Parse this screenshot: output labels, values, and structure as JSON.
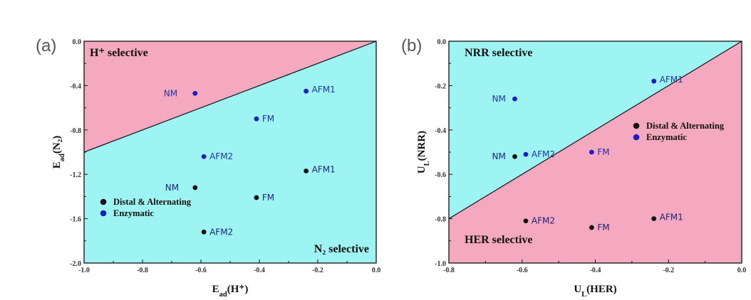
{
  "chart_data": [
    {
      "panel_label": "(a)",
      "type": "scatter",
      "xlabel": "E_ad(H⁺)",
      "ylabel": "E_ad(N₂)",
      "xlim": [
        -1.0,
        0.0
      ],
      "ylim": [
        -2.0,
        0.0
      ],
      "xticks": [
        -1.0,
        -0.8,
        -0.6,
        -0.4,
        -0.2,
        0.0
      ],
      "xtick_labels": [
        "-1.0",
        "-0.8",
        "-0.6",
        "-0.4",
        "-0.2",
        "0.0"
      ],
      "yticks": [
        0.0,
        -0.4,
        -0.8,
        -1.2,
        -1.6,
        -2.0
      ],
      "ytick_labels": [
        "0.0",
        "-0.4",
        "-0.8",
        "-1.2",
        "-1.6",
        "-2.0"
      ],
      "divider": {
        "from": [
          -1.0,
          -1.0
        ],
        "to": [
          0.0,
          0.0
        ]
      },
      "upper_region": {
        "label": "H⁺ selective",
        "color": "#f4a9c0"
      },
      "lower_region": {
        "label": "N₂ selective",
        "color": "#9ef4f2"
      },
      "legend": [
        "Distal & Alternating",
        "Enzymatic"
      ],
      "series": [
        {
          "name": "Distal & Alternating",
          "color": "#111111",
          "points": [
            {
              "x": -0.62,
              "y": -1.32,
              "label": "NM"
            },
            {
              "x": -0.41,
              "y": -1.41,
              "label": "FM"
            },
            {
              "x": -0.24,
              "y": -1.17,
              "label": "AFM1"
            },
            {
              "x": -0.59,
              "y": -1.72,
              "label": "AFM2"
            }
          ]
        },
        {
          "name": "Enzymatic",
          "color": "#1c1cc9",
          "points": [
            {
              "x": -0.62,
              "y": -0.47,
              "label": "NM"
            },
            {
              "x": -0.41,
              "y": -0.7,
              "label": "FM"
            },
            {
              "x": -0.24,
              "y": -0.45,
              "label": "AFM1"
            },
            {
              "x": -0.59,
              "y": -1.04,
              "label": "AFM2"
            }
          ]
        }
      ]
    },
    {
      "panel_label": "(b)",
      "type": "scatter",
      "xlabel": "U_L(HER)",
      "ylabel": "U_L(NRR)",
      "xlim": [
        -0.8,
        0.0
      ],
      "ylim": [
        -1.0,
        0.0
      ],
      "xticks": [
        -0.8,
        -0.6,
        -0.4,
        -0.2,
        0.0
      ],
      "xtick_labels": [
        "-0.8",
        "-0.6",
        "-0.4",
        "-0.2",
        "0.0"
      ],
      "yticks": [
        0.0,
        -0.2,
        -0.4,
        -0.6,
        -0.8,
        -1.0
      ],
      "ytick_labels": [
        "0.0",
        "-0.2",
        "-0.4",
        "-0.6",
        "-0.8",
        "-1.0"
      ],
      "divider": {
        "from": [
          -0.8,
          -0.8
        ],
        "to": [
          0.0,
          0.0
        ]
      },
      "upper_region": {
        "label": "NRR selective",
        "color": "#9ef4f2"
      },
      "lower_region": {
        "label": "HER selective",
        "color": "#f4a9c0"
      },
      "legend": [
        "Distal & Alternating",
        "Enzymatic"
      ],
      "series": [
        {
          "name": "Distal & Alternating",
          "color": "#111111",
          "points": [
            {
              "x": -0.62,
              "y": -0.52,
              "label": "NM"
            },
            {
              "x": -0.41,
              "y": -0.84,
              "label": "FM"
            },
            {
              "x": -0.24,
              "y": -0.8,
              "label": "AFM1"
            },
            {
              "x": -0.59,
              "y": -0.81,
              "label": "AFM2"
            }
          ]
        },
        {
          "name": "Enzymatic",
          "color": "#1c1cc9",
          "points": [
            {
              "x": -0.62,
              "y": -0.26,
              "label": "NM"
            },
            {
              "x": -0.41,
              "y": -0.5,
              "label": "FM"
            },
            {
              "x": -0.24,
              "y": -0.18,
              "label": "AFM1"
            },
            {
              "x": -0.59,
              "y": -0.51,
              "label": "AFM2"
            }
          ]
        }
      ]
    }
  ]
}
